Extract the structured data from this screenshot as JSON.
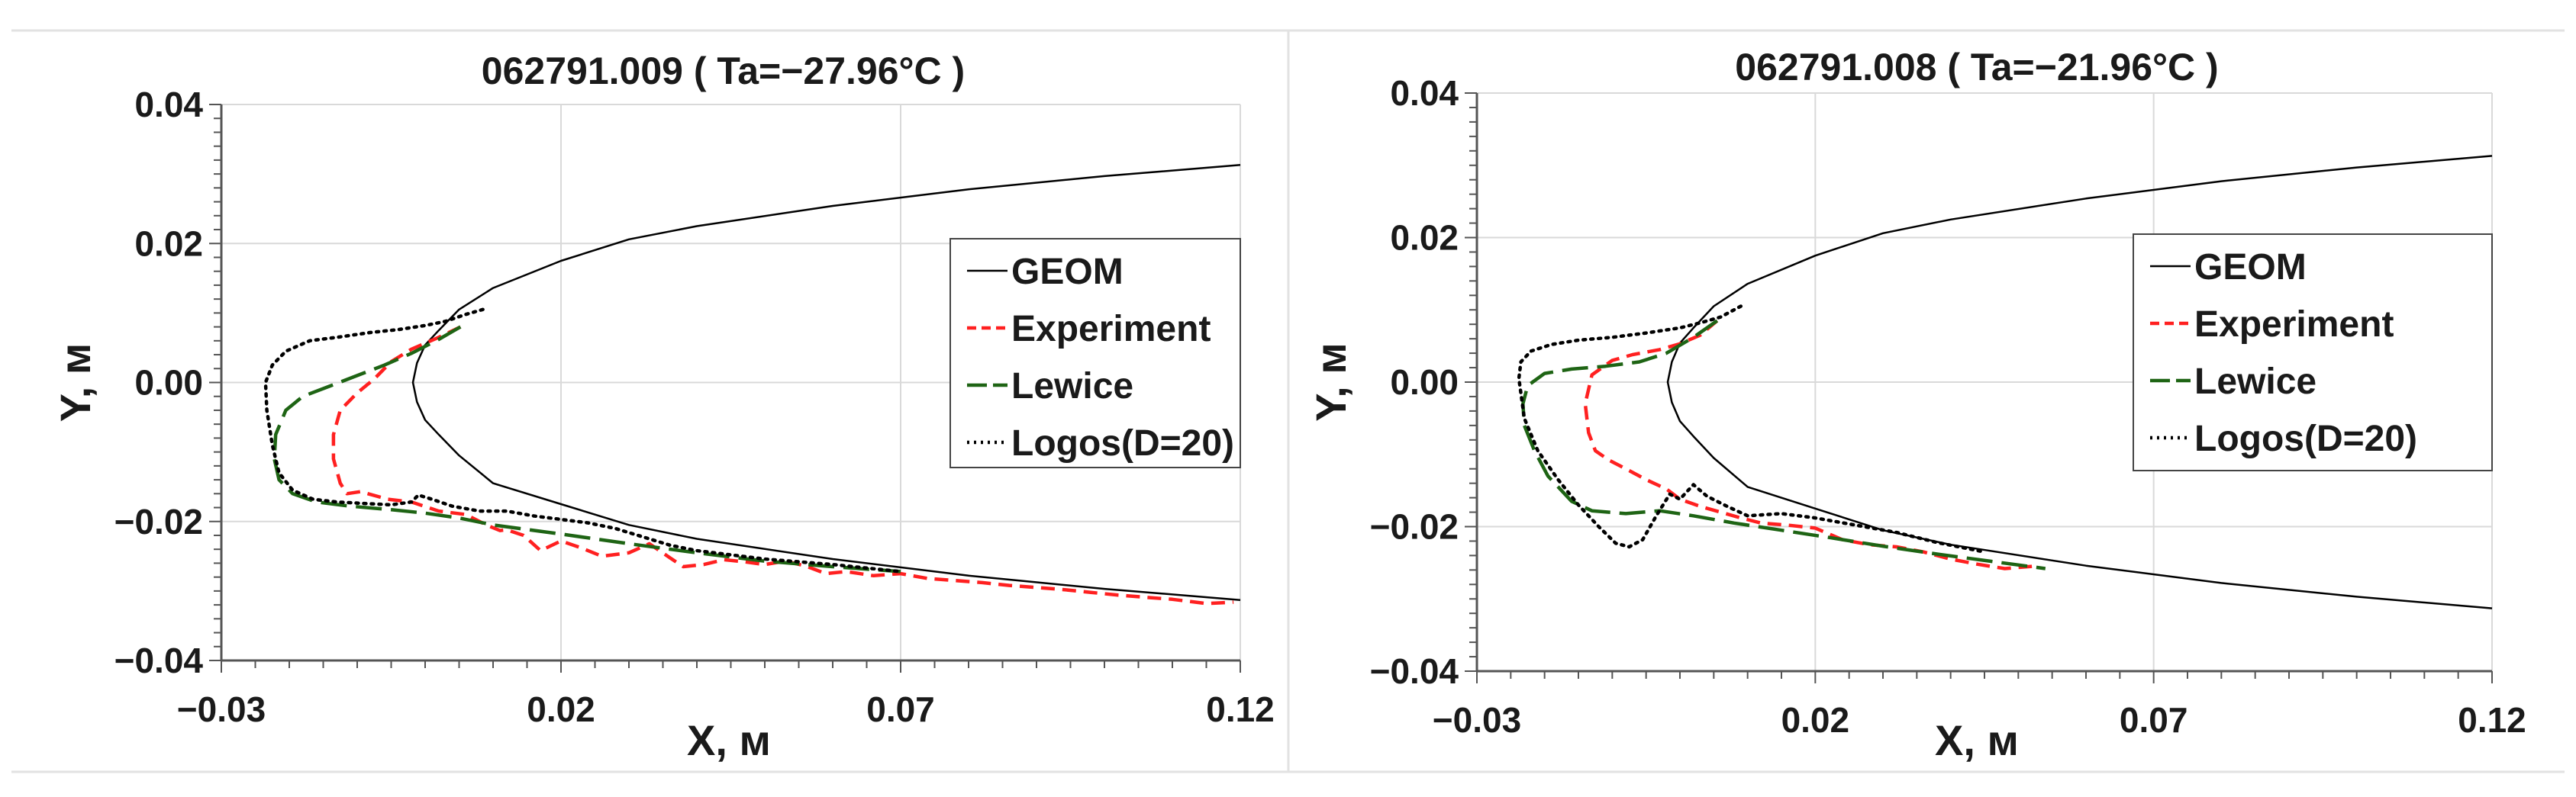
{
  "chart_data": [
    {
      "type": "line",
      "title": "062791.009 ( Ta=−27.96°C )",
      "xlabel": "X, м",
      "ylabel": "Y, м",
      "xlim": [
        -0.03,
        0.12
      ],
      "ylim": [
        -0.04,
        0.04
      ],
      "xticks": [
        "−0.03",
        "0.02",
        "0.07",
        "0.12"
      ],
      "xtick_values": [
        -0.03,
        0.02,
        0.07,
        0.12
      ],
      "yticks": [
        "0.04",
        "0.02",
        "0.00",
        "−0.02",
        "−0.04"
      ],
      "ytick_values": [
        0.04,
        0.02,
        0.0,
        -0.02,
        -0.04
      ],
      "grid": true,
      "legend_position": "right",
      "legend": [
        "GEOM",
        "Experiment",
        "Lewice",
        "Logos(D=20)"
      ],
      "series": [
        {
          "name": "GEOM",
          "style": "solid",
          "color": "#000000",
          "x": [
            0.12,
            0.1,
            0.08,
            0.06,
            0.04,
            0.03,
            0.02,
            0.01,
            0.005,
            0.002,
            0.0,
            -0.0012,
            -0.0018,
            -0.0012,
            0.0,
            0.002,
            0.005,
            0.01,
            0.02,
            0.03,
            0.04,
            0.06,
            0.08,
            0.1,
            0.12
          ],
          "y": [
            0.0313,
            0.0297,
            0.0278,
            0.0254,
            0.0225,
            0.0206,
            0.0175,
            0.0136,
            0.0105,
            0.0075,
            0.0054,
            0.0028,
            0.0,
            -0.0028,
            -0.0054,
            -0.0075,
            -0.0105,
            -0.0145,
            -0.0175,
            -0.0205,
            -0.0225,
            -0.0254,
            -0.0278,
            -0.0297,
            -0.0313
          ]
        },
        {
          "name": "Experiment",
          "style": "dashed",
          "color": "#ff2020",
          "x": [
            0.0052,
            0.002,
            -0.002,
            -0.005,
            -0.0075,
            -0.01,
            -0.0125,
            -0.0135,
            -0.0135,
            -0.0125,
            -0.0115,
            -0.0095,
            -0.0055,
            -0.002,
            0.002,
            0.006,
            0.009,
            0.011,
            0.012,
            0.0145,
            0.017,
            0.02,
            0.023,
            0.026,
            0.03,
            0.033,
            0.036,
            0.038,
            0.041,
            0.044,
            0.047,
            0.05,
            0.053,
            0.056,
            0.059,
            0.062,
            0.066,
            0.07,
            0.074,
            0.078,
            0.082,
            0.086,
            0.09,
            0.094,
            0.098,
            0.102,
            0.106,
            0.11,
            0.115,
            0.119
          ],
          "y": [
            0.008,
            0.0065,
            0.0048,
            0.003,
            0.0005,
            -0.0015,
            -0.004,
            -0.0075,
            -0.011,
            -0.0145,
            -0.016,
            -0.0157,
            -0.0168,
            -0.0172,
            -0.0185,
            -0.019,
            -0.0205,
            -0.0213,
            -0.0212,
            -0.022,
            -0.0242,
            -0.0228,
            -0.0238,
            -0.025,
            -0.0245,
            -0.0232,
            -0.0252,
            -0.0265,
            -0.0262,
            -0.0255,
            -0.0258,
            -0.0262,
            -0.0257,
            -0.0264,
            -0.0275,
            -0.0272,
            -0.0278,
            -0.0275,
            -0.0282,
            -0.0285,
            -0.0288,
            -0.0292,
            -0.0295,
            -0.0298,
            -0.0302,
            -0.0306,
            -0.0309,
            -0.0312,
            -0.0318,
            -0.0316
          ]
        },
        {
          "name": "Lewice",
          "style": "longdash",
          "color": "#1e6414",
          "x": [
            0.0052,
            0.002,
            -0.002,
            -0.006,
            -0.01,
            -0.014,
            -0.018,
            -0.0205,
            -0.022,
            -0.0222,
            -0.0215,
            -0.0195,
            -0.016,
            -0.011,
            -0.005,
            0.0,
            0.005,
            0.01,
            0.02,
            0.03,
            0.04,
            0.05,
            0.06,
            0.07
          ],
          "y": [
            0.008,
            0.0062,
            0.0042,
            0.0025,
            0.001,
            -0.0005,
            -0.002,
            -0.004,
            -0.0075,
            -0.011,
            -0.014,
            -0.016,
            -0.0172,
            -0.0178,
            -0.0183,
            -0.0188,
            -0.0195,
            -0.0205,
            -0.0218,
            -0.0232,
            -0.0245,
            -0.0257,
            -0.0265,
            -0.0272
          ]
        },
        {
          "name": "Logos(D=20)",
          "style": "dotted",
          "color": "#000000",
          "x": [
            0.0085,
            0.006,
            0.003,
            0.0,
            -0.004,
            -0.008,
            -0.013,
            -0.017,
            -0.0205,
            -0.0225,
            -0.0235,
            -0.0233,
            -0.0225,
            -0.0215,
            -0.0195,
            -0.0165,
            -0.013,
            -0.009,
            -0.005,
            -0.002,
            -0.001,
            0.001,
            0.004,
            0.008,
            0.012,
            0.016,
            0.02,
            0.024,
            0.028,
            0.032,
            0.036,
            0.04,
            0.05,
            0.06,
            0.07
          ],
          "y": [
            0.0105,
            0.0098,
            0.0088,
            0.0082,
            0.0076,
            0.0072,
            0.0065,
            0.006,
            0.0045,
            0.0025,
            0.0,
            -0.004,
            -0.009,
            -0.013,
            -0.0155,
            -0.0168,
            -0.0172,
            -0.0174,
            -0.0176,
            -0.0172,
            -0.0162,
            -0.0168,
            -0.0178,
            -0.0185,
            -0.0185,
            -0.0192,
            -0.0197,
            -0.0202,
            -0.021,
            -0.0222,
            -0.0234,
            -0.0242,
            -0.0254,
            -0.0262,
            -0.0272
          ]
        }
      ]
    },
    {
      "type": "line",
      "title": "062791.008 ( Ta=−21.96°C )",
      "xlabel": "X, м",
      "ylabel": "Y, м",
      "xlim": [
        -0.03,
        0.12
      ],
      "ylim": [
        -0.04,
        0.04
      ],
      "xticks": [
        "−0.03",
        "0.02",
        "0.07",
        "0.12"
      ],
      "xtick_values": [
        -0.03,
        0.02,
        0.07,
        0.12
      ],
      "yticks": [
        "0.04",
        "0.02",
        "0.00",
        "−0.02",
        "−0.04"
      ],
      "ytick_values": [
        0.04,
        0.02,
        0.0,
        -0.02,
        -0.04
      ],
      "grid": true,
      "legend_position": "right",
      "legend": [
        "GEOM",
        "Experiment",
        "Lewice",
        "Logos(D=20)"
      ],
      "series": [
        {
          "name": "GEOM",
          "style": "solid",
          "color": "#000000",
          "x": [
            0.12,
            0.1,
            0.08,
            0.06,
            0.04,
            0.03,
            0.02,
            0.01,
            0.005,
            0.002,
            0.0,
            -0.0012,
            -0.0018,
            -0.0012,
            0.0,
            0.002,
            0.005,
            0.01,
            0.02,
            0.03,
            0.04,
            0.06,
            0.08,
            0.1,
            0.12
          ],
          "y": [
            0.0313,
            0.0297,
            0.0278,
            0.0254,
            0.0225,
            0.0206,
            0.0175,
            0.0136,
            0.0105,
            0.0075,
            0.0054,
            0.0028,
            0.0,
            -0.0028,
            -0.0054,
            -0.0075,
            -0.0105,
            -0.0145,
            -0.0175,
            -0.0205,
            -0.0225,
            -0.0254,
            -0.0278,
            -0.0297,
            -0.0313
          ]
        },
        {
          "name": "Experiment",
          "style": "dashed",
          "color": "#ff2020",
          "x": [
            0.0055,
            0.003,
            0.0,
            -0.003,
            -0.007,
            -0.01,
            -0.013,
            -0.014,
            -0.0135,
            -0.0125,
            -0.0105,
            -0.008,
            -0.005,
            -0.002,
            0.0,
            0.003,
            0.006,
            0.009,
            0.012,
            0.016,
            0.02,
            0.024,
            0.028,
            0.032,
            0.036,
            0.04,
            0.044,
            0.048,
            0.052
          ],
          "y": [
            0.0085,
            0.0065,
            0.0053,
            0.0045,
            0.0038,
            0.003,
            0.001,
            -0.003,
            -0.007,
            -0.0095,
            -0.0108,
            -0.012,
            -0.0135,
            -0.0148,
            -0.0162,
            -0.0172,
            -0.018,
            -0.0188,
            -0.0195,
            -0.0198,
            -0.0202,
            -0.0218,
            -0.0225,
            -0.0228,
            -0.0235,
            -0.0245,
            -0.0252,
            -0.0258,
            -0.0255
          ]
        },
        {
          "name": "Lewice",
          "style": "longdash",
          "color": "#1e6414",
          "x": [
            0.0055,
            0.002,
            -0.002,
            -0.006,
            -0.011,
            -0.016,
            -0.02,
            -0.0225,
            -0.0232,
            -0.023,
            -0.0215,
            -0.0195,
            -0.016,
            -0.013,
            -0.008,
            -0.003,
            0.002,
            0.008,
            0.015,
            0.022,
            0.03,
            0.038,
            0.046,
            0.054
          ],
          "y": [
            0.0085,
            0.0062,
            0.004,
            0.0028,
            0.0022,
            0.0018,
            0.0012,
            -0.0005,
            -0.003,
            -0.006,
            -0.0095,
            -0.013,
            -0.0165,
            -0.0178,
            -0.0182,
            -0.0178,
            -0.0185,
            -0.0195,
            -0.0205,
            -0.0215,
            -0.0227,
            -0.0238,
            -0.0248,
            -0.0258
          ]
        },
        {
          "name": "Logos(D=20)",
          "style": "dotted",
          "color": "#000000",
          "x": [
            0.009,
            0.006,
            0.003,
            0.0,
            -0.005,
            -0.01,
            -0.015,
            -0.019,
            -0.022,
            -0.0235,
            -0.0238,
            -0.023,
            -0.021,
            -0.018,
            -0.015,
            -0.012,
            -0.0095,
            -0.0075,
            -0.0055,
            -0.0035,
            -0.0015,
            0.0,
            0.002,
            0.004,
            0.007,
            0.01,
            0.015,
            0.02,
            0.026,
            0.032,
            0.038,
            0.045
          ],
          "y": [
            0.0105,
            0.009,
            0.0082,
            0.0075,
            0.0068,
            0.0062,
            0.0058,
            0.0052,
            0.0043,
            0.0028,
            0.0005,
            -0.005,
            -0.0095,
            -0.0135,
            -0.017,
            -0.02,
            -0.0223,
            -0.0228,
            -0.0218,
            -0.0185,
            -0.0155,
            -0.0162,
            -0.0142,
            -0.0158,
            -0.0172,
            -0.0185,
            -0.0182,
            -0.0188,
            -0.0198,
            -0.0208,
            -0.0222,
            -0.0235
          ]
        }
      ]
    }
  ]
}
